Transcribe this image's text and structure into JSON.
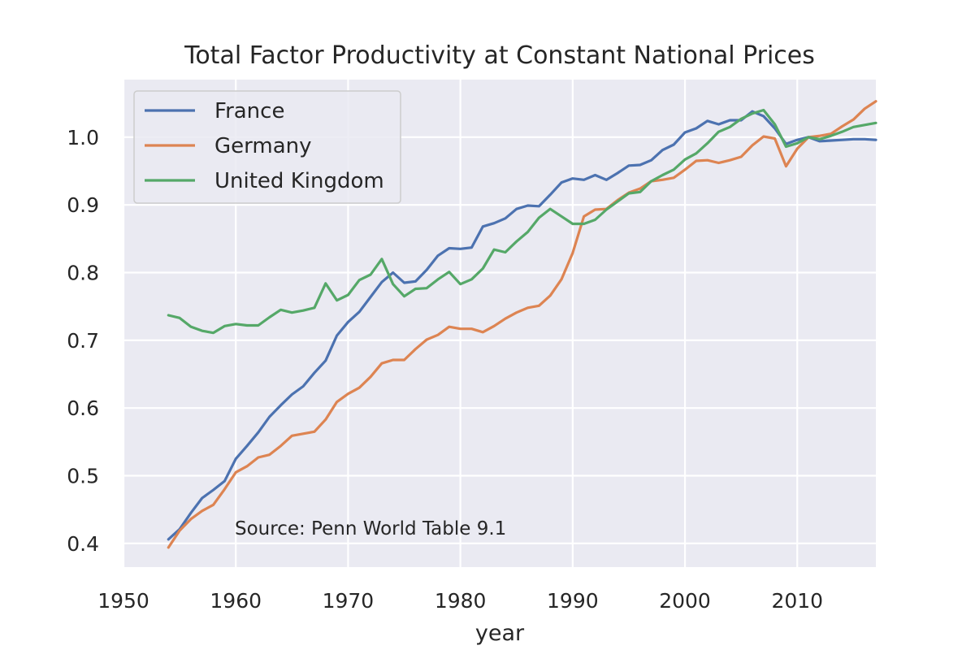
{
  "chart_data": {
    "type": "line",
    "title": "Total Factor Productivity at Constant National Prices",
    "xlabel": "year",
    "ylabel": "",
    "xlim": [
      1950,
      2017
    ],
    "ylim": [
      0.365,
      1.085
    ],
    "xticks": [
      1950,
      1960,
      1970,
      1980,
      1990,
      2000,
      2010
    ],
    "xtick_labels": [
      "1950",
      "1960",
      "1970",
      "1980",
      "1990",
      "2000",
      "2010"
    ],
    "yticks": [
      0.4,
      0.5,
      0.6,
      0.7,
      0.8,
      0.9,
      1.0
    ],
    "ytick_labels": [
      "0.4",
      "0.5",
      "0.6",
      "0.7",
      "0.8",
      "0.9",
      "1.0"
    ],
    "grid": true,
    "legend_position": "top-left",
    "annotation": "Source: Penn World Table 9.1",
    "x": [
      1954,
      1955,
      1956,
      1957,
      1958,
      1959,
      1960,
      1961,
      1962,
      1963,
      1964,
      1965,
      1966,
      1967,
      1968,
      1969,
      1970,
      1971,
      1972,
      1973,
      1974,
      1975,
      1976,
      1977,
      1978,
      1979,
      1980,
      1981,
      1982,
      1983,
      1984,
      1985,
      1986,
      1987,
      1988,
      1989,
      1990,
      1991,
      1992,
      1993,
      1994,
      1995,
      1996,
      1997,
      1998,
      1999,
      2000,
      2001,
      2002,
      2003,
      2004,
      2005,
      2006,
      2007,
      2008,
      2009,
      2010,
      2011,
      2012,
      2013,
      2014,
      2015,
      2016,
      2017
    ],
    "series": [
      {
        "name": "France",
        "color": "#4C72B0",
        "values": [
          0.406,
          0.421,
          0.445,
          0.467,
          0.479,
          0.492,
          0.525,
          0.544,
          0.564,
          0.587,
          0.604,
          0.62,
          0.632,
          0.652,
          0.67,
          0.707,
          0.727,
          0.742,
          0.764,
          0.786,
          0.8,
          0.785,
          0.787,
          0.804,
          0.825,
          0.836,
          0.835,
          0.837,
          0.868,
          0.873,
          0.88,
          0.894,
          0.899,
          0.898,
          0.915,
          0.933,
          0.939,
          0.937,
          0.944,
          0.937,
          0.947,
          0.958,
          0.959,
          0.966,
          0.981,
          0.989,
          1.007,
          1.013,
          1.024,
          1.019,
          1.025,
          1.025,
          1.038,
          1.031,
          1.013,
          0.99,
          0.996,
          1.0,
          0.994,
          0.995,
          0.996,
          0.997,
          0.997,
          0.996
        ]
      },
      {
        "name": "Germany",
        "color": "#DD8452",
        "values": [
          0.394,
          0.419,
          0.436,
          0.448,
          0.457,
          0.48,
          0.505,
          0.514,
          0.527,
          0.531,
          0.544,
          0.559,
          0.562,
          0.565,
          0.583,
          0.609,
          0.621,
          0.63,
          0.646,
          0.666,
          0.671,
          0.671,
          0.687,
          0.701,
          0.708,
          0.72,
          0.717,
          0.717,
          0.712,
          0.721,
          0.732,
          0.741,
          0.748,
          0.751,
          0.766,
          0.79,
          0.829,
          0.883,
          0.893,
          0.894,
          0.907,
          0.918,
          0.924,
          0.935,
          0.937,
          0.94,
          0.952,
          0.965,
          0.966,
          0.962,
          0.966,
          0.971,
          0.988,
          1.001,
          0.998,
          0.957,
          0.983,
          1.0,
          1.002,
          1.005,
          1.016,
          1.026,
          1.042,
          1.053
        ]
      },
      {
        "name": "United Kingdom",
        "color": "#55A868",
        "values": [
          0.737,
          0.733,
          0.72,
          0.714,
          0.711,
          0.721,
          0.724,
          0.722,
          0.722,
          0.734,
          0.745,
          0.741,
          0.744,
          0.748,
          0.784,
          0.759,
          0.767,
          0.789,
          0.797,
          0.82,
          0.783,
          0.765,
          0.776,
          0.777,
          0.79,
          0.801,
          0.783,
          0.79,
          0.806,
          0.834,
          0.83,
          0.846,
          0.86,
          0.881,
          0.894,
          0.883,
          0.872,
          0.872,
          0.878,
          0.893,
          0.905,
          0.917,
          0.919,
          0.935,
          0.944,
          0.952,
          0.967,
          0.976,
          0.991,
          1.008,
          1.015,
          1.027,
          1.035,
          1.04,
          1.019,
          0.986,
          0.991,
          1.0,
          0.997,
          1.002,
          1.008,
          1.015,
          1.018,
          1.021
        ]
      }
    ]
  }
}
